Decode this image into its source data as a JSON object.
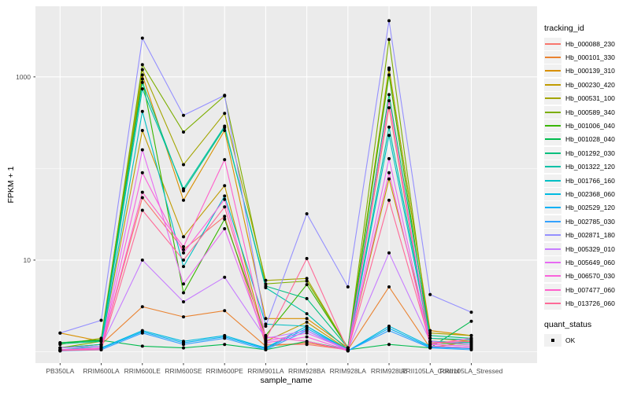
{
  "figure": {
    "kind": "ggplot2 faceted line chart of gene expression",
    "panel_bg": "#EBEBEB",
    "gridline_color": "#FFFFFF",
    "tick_text_color": "#4D4D4D",
    "point_color": "#000000",
    "legend_key_bg": "#F1F1F1"
  },
  "chart_data": {
    "type": "line",
    "title": "",
    "xlabel": "sample_name",
    "ylabel": "FPKM + 1",
    "y_scale": "log10",
    "ylim": [
      0.75,
      5900
    ],
    "grid": true,
    "legend_position": "right",
    "y_ticks": [
      {
        "label": "1000",
        "value": 1000
      },
      {
        "label": "10",
        "value": 10
      }
    ],
    "y_minor_gridlines": [
      1,
      100
    ],
    "categories": [
      "PB350LA",
      "RRIM600LA",
      "RRIM600LE",
      "RRIM600SE",
      "RRIM600PE",
      "RRIM901LA",
      "RRIM928BA",
      "RRIM928LA",
      "RRIM928LE",
      "RRII105LA_Control",
      "RRII105LA_Stressed"
    ],
    "legend": {
      "title": "tracking_id"
    },
    "quant_legend": {
      "title": "quant_status",
      "items": [
        {
          "label": "OK",
          "marker": "black-square"
        }
      ]
    },
    "series": [
      {
        "name": "Hb_000088_230",
        "color": "#F8766D",
        "values": [
          1.05,
          1.1,
          48,
          13,
          30,
          1.2,
          1.2,
          1.05,
          460,
          1.2,
          1.15
        ]
      },
      {
        "name": "Hb_000101_330",
        "color": "#EA8331",
        "values": [
          1.1,
          1.2,
          3.1,
          2.4,
          2.8,
          1.15,
          1.25,
          1.05,
          5.1,
          1.1,
          1.3
        ]
      },
      {
        "name": "Hb_000139_310",
        "color": "#D89000",
        "values": [
          1.6,
          1.3,
          1050,
          45,
          260,
          2.3,
          2.3,
          1.1,
          1200,
          1.7,
          1.5
        ]
      },
      {
        "name": "Hb_000230_420",
        "color": "#C09B00",
        "values": [
          1.1,
          1.2,
          260,
          18,
          65,
          1.3,
          2.1,
          1.05,
          77,
          1.4,
          1.3
        ]
      },
      {
        "name": "Hb_000531_100",
        "color": "#A3A500",
        "values": [
          1.2,
          1.4,
          1200,
          110,
          400,
          6.0,
          6.3,
          1.1,
          1250,
          1.6,
          1.5
        ]
      },
      {
        "name": "Hb_000589_340",
        "color": "#7CAE00",
        "values": [
          1.1,
          1.3,
          1360,
          250,
          620,
          5.5,
          5.9,
          1.1,
          2560,
          1.3,
          1.25
        ]
      },
      {
        "name": "Hb_001006_040",
        "color": "#39B600",
        "values": [
          1.25,
          1.35,
          950,
          4.4,
          28,
          1.5,
          5.4,
          1.1,
          1050,
          1.25,
          1.2
        ]
      },
      {
        "name": "Hb_001028_040",
        "color": "#00BB4E",
        "values": [
          1.25,
          1.33,
          1.15,
          1.1,
          1.2,
          1.05,
          1.3,
          1.05,
          1.2,
          1.1,
          2.15
        ]
      },
      {
        "name": "Hb_001292_030",
        "color": "#00BF7D",
        "values": [
          1.22,
          1.3,
          870,
          57,
          280,
          5.2,
          3.8,
          1.1,
          640,
          1.5,
          1.4
        ]
      },
      {
        "name": "Hb_001322_120",
        "color": "#00C1A7",
        "values": [
          1.1,
          1.2,
          740,
          60,
          290,
          5.0,
          2.6,
          1.05,
          283,
          1.4,
          1.35
        ]
      },
      {
        "name": "Hb_001766_160",
        "color": "#00BFC4",
        "values": [
          1.05,
          1.15,
          420,
          8.5,
          50,
          2.0,
          1.9,
          1.05,
          230,
          1.3,
          1.25
        ]
      },
      {
        "name": "Hb_002368_060",
        "color": "#00BAE0",
        "values": [
          1.02,
          1.1,
          1.7,
          1.3,
          1.5,
          1.1,
          1.9,
          1.02,
          1.9,
          1.15,
          1.1
        ]
      },
      {
        "name": "Hb_002529_120",
        "color": "#00B0F6",
        "values": [
          1.02,
          1.08,
          1.65,
          1.25,
          1.45,
          1.08,
          1.8,
          1.02,
          1.8,
          1.12,
          1.08
        ]
      },
      {
        "name": "Hb_002785_030",
        "color": "#35A2FF",
        "values": [
          1.02,
          1.05,
          1.6,
          1.2,
          1.4,
          1.05,
          1.7,
          1.02,
          1.7,
          1.1,
          1.05
        ]
      },
      {
        "name": "Hb_002871_180",
        "color": "#9590FF",
        "values": [
          1.6,
          2.2,
          2650,
          380,
          630,
          1.9,
          32,
          5.1,
          4100,
          4.2,
          2.7
        ]
      },
      {
        "name": "Hb_005329_010",
        "color": "#C77CFF",
        "values": [
          1.1,
          1.15,
          10,
          3.5,
          6.5,
          1.4,
          1.7,
          1.05,
          12,
          1.3,
          1.2
        ]
      },
      {
        "name": "Hb_005649_060",
        "color": "#E76BF3",
        "values": [
          1.05,
          1.1,
          160,
          5.5,
          22,
          1.3,
          1.6,
          1.05,
          128,
          1.2,
          1.15
        ]
      },
      {
        "name": "Hb_006570_030",
        "color": "#FA62DB",
        "values": [
          1.05,
          1.1,
          90,
          12,
          46,
          1.25,
          1.45,
          1.03,
          90,
          1.15,
          1.1
        ]
      },
      {
        "name": "Hb_007477_060",
        "color": "#FF61CC",
        "values": [
          1.03,
          1.08,
          55,
          14,
          125,
          1.45,
          1.3,
          1.03,
          550,
          1.2,
          1.4
        ]
      },
      {
        "name": "Hb_013726_060",
        "color": "#FF6A98",
        "values": [
          1.03,
          1.05,
          35,
          10,
          38,
          1.35,
          10.4,
          1.03,
          45,
          1.25,
          1.3
        ]
      }
    ]
  }
}
